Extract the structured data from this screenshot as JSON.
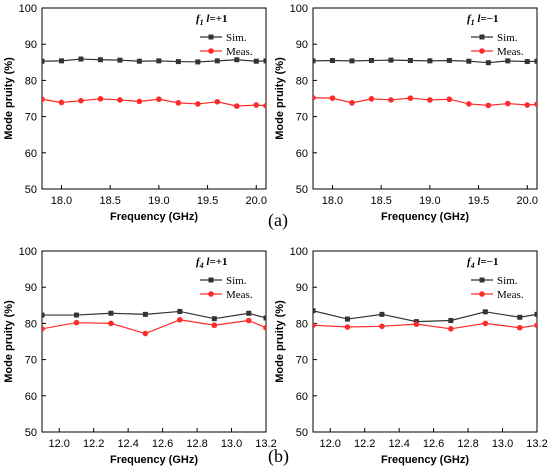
{
  "figure_labels": {
    "a": "(a)",
    "b": "(b)"
  },
  "colors": {
    "sim": "#333333",
    "meas": "#ff2a2a",
    "axis": "#000000"
  },
  "chart_data": [
    {
      "type": "line",
      "panel": "a",
      "title": "f1 l=+1",
      "title_parts": {
        "f": "f",
        "sub": "1",
        "l": "l",
        "eq": "=+1"
      },
      "xlabel": "Frequency (GHz)",
      "ylabel": "Mode pruity (%)",
      "xlim": [
        17.8,
        20.1
      ],
      "ylim": [
        50,
        100
      ],
      "xticks": [
        "18.0",
        "18.5",
        "19.0",
        "19.5",
        "20.0"
      ],
      "xtick_values": [
        18.0,
        18.5,
        19.0,
        19.5,
        20.0
      ],
      "yticks": [
        "50",
        "60",
        "70",
        "80",
        "90",
        "100"
      ],
      "ytick_values": [
        50,
        60,
        70,
        80,
        90,
        100
      ],
      "legend_position": "top-right",
      "x": [
        17.8,
        18.0,
        18.2,
        18.4,
        18.6,
        18.8,
        19.0,
        19.2,
        19.4,
        19.6,
        19.8,
        20.0,
        20.1
      ],
      "series": [
        {
          "name": "Sim.",
          "marker": "square",
          "values": [
            85.3,
            85.4,
            85.9,
            85.7,
            85.6,
            85.3,
            85.4,
            85.2,
            85.1,
            85.4,
            85.7,
            85.3,
            85.4
          ]
        },
        {
          "name": "Meas.",
          "marker": "circle",
          "values": [
            74.8,
            73.9,
            74.4,
            74.9,
            74.6,
            74.2,
            74.8,
            73.8,
            73.5,
            74.1,
            72.9,
            73.2,
            73.0
          ]
        }
      ]
    },
    {
      "type": "line",
      "panel": "a",
      "title": "f1 l=−1",
      "title_parts": {
        "f": "f",
        "sub": "1",
        "l": "l",
        "eq": "=−1"
      },
      "xlabel": "Frequency (GHz)",
      "ylabel": "Mode pruity (%)",
      "xlim": [
        17.8,
        20.1
      ],
      "ylim": [
        50,
        100
      ],
      "xticks": [
        "18.0",
        "18.5",
        "19.0",
        "19.5",
        "20.0"
      ],
      "xtick_values": [
        18.0,
        18.5,
        19.0,
        19.5,
        20.0
      ],
      "yticks": [
        "50",
        "60",
        "70",
        "80",
        "90",
        "100"
      ],
      "ytick_values": [
        50,
        60,
        70,
        80,
        90,
        100
      ],
      "legend_position": "top-right",
      "x": [
        17.8,
        18.0,
        18.2,
        18.4,
        18.6,
        18.8,
        19.0,
        19.2,
        19.4,
        19.6,
        19.8,
        20.0,
        20.1
      ],
      "series": [
        {
          "name": "Sim.",
          "marker": "square",
          "values": [
            85.4,
            85.5,
            85.4,
            85.5,
            85.6,
            85.5,
            85.4,
            85.5,
            85.3,
            84.9,
            85.4,
            85.2,
            85.3
          ]
        },
        {
          "name": "Meas.",
          "marker": "circle",
          "values": [
            75.2,
            75.1,
            73.8,
            74.9,
            74.6,
            75.1,
            74.6,
            74.8,
            73.5,
            73.1,
            73.6,
            73.2,
            73.4
          ]
        }
      ]
    },
    {
      "type": "line",
      "panel": "b",
      "title": "f4 l=+1",
      "title_parts": {
        "f": "f",
        "sub": "4",
        "l": "l",
        "eq": "=+1"
      },
      "xlabel": "Frequency (GHz)",
      "ylabel": "Mode pruity (%)",
      "xlim": [
        11.9,
        13.2
      ],
      "ylim": [
        50,
        100
      ],
      "xticks": [
        "12.0",
        "12.2",
        "12.4",
        "12.6",
        "12.8",
        "13.0",
        "13.2"
      ],
      "xtick_values": [
        12.0,
        12.2,
        12.4,
        12.6,
        12.8,
        13.0,
        13.2
      ],
      "yticks": [
        "50",
        "60",
        "70",
        "80",
        "90",
        "100"
      ],
      "ytick_values": [
        50,
        60,
        70,
        80,
        90,
        100
      ],
      "legend_position": "top-right",
      "x": [
        11.9,
        12.1,
        12.3,
        12.5,
        12.7,
        12.9,
        13.1,
        13.2
      ],
      "series": [
        {
          "name": "Sim.",
          "marker": "square",
          "values": [
            82.3,
            82.3,
            82.8,
            82.5,
            83.3,
            81.3,
            82.8,
            81.5
          ]
        },
        {
          "name": "Meas.",
          "marker": "circle",
          "values": [
            78.5,
            80.2,
            80.0,
            77.2,
            81.0,
            79.5,
            80.8,
            78.8
          ]
        }
      ]
    },
    {
      "type": "line",
      "panel": "b",
      "title": "f4 l=−1",
      "title_parts": {
        "f": "f",
        "sub": "4",
        "l": "l",
        "eq": "=−1"
      },
      "xlabel": "Frequency (GHz)",
      "ylabel": "Mode pruity (%)",
      "xlim": [
        11.9,
        13.2
      ],
      "ylim": [
        50,
        100
      ],
      "xticks": [
        "12.0",
        "12.2",
        "12.4",
        "12.6",
        "12.8",
        "13.0",
        "13.2"
      ],
      "xtick_values": [
        12.0,
        12.2,
        12.4,
        12.6,
        12.8,
        13.0,
        13.2
      ],
      "yticks": [
        "50",
        "60",
        "70",
        "80",
        "90",
        "100"
      ],
      "ytick_values": [
        50,
        60,
        70,
        80,
        90,
        100
      ],
      "legend_position": "top-right",
      "x": [
        11.9,
        12.1,
        12.3,
        12.5,
        12.7,
        12.9,
        13.1,
        13.2
      ],
      "series": [
        {
          "name": "Sim.",
          "marker": "square",
          "values": [
            83.5,
            81.2,
            82.5,
            80.5,
            80.8,
            83.2,
            81.7,
            82.5
          ]
        },
        {
          "name": "Meas.",
          "marker": "circle",
          "values": [
            79.5,
            79.0,
            79.2,
            79.8,
            78.5,
            80.0,
            78.8,
            79.5
          ]
        }
      ]
    }
  ]
}
